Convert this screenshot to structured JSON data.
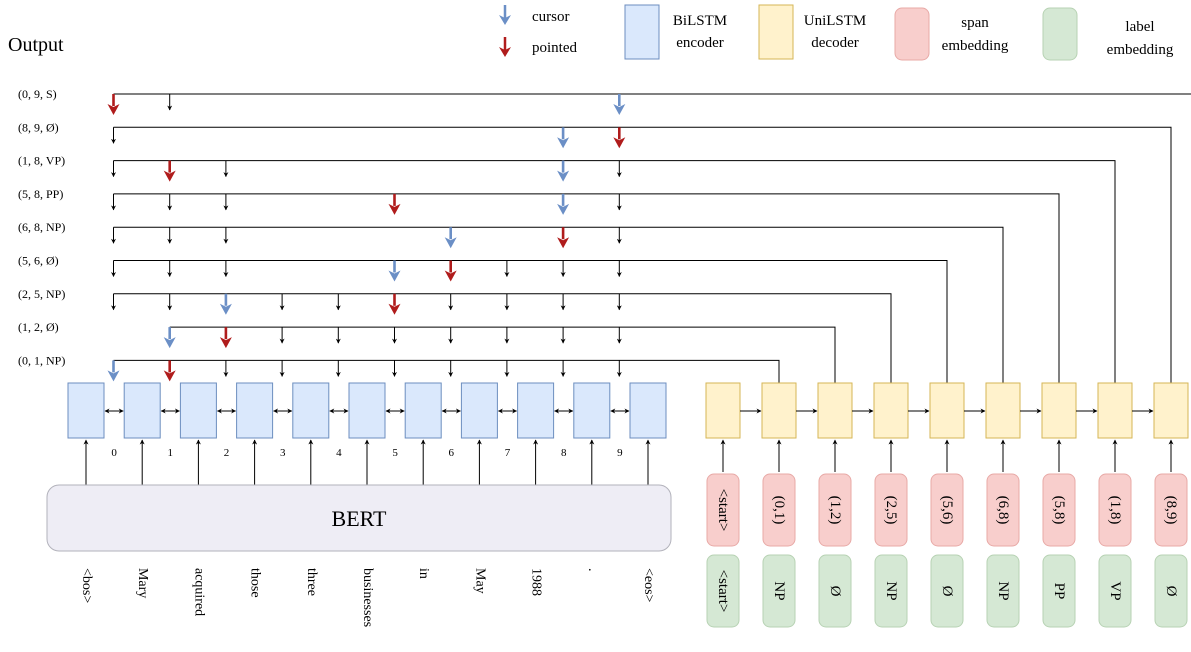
{
  "title": "Output",
  "legend": {
    "cursor": "cursor",
    "pointed": "pointed",
    "bilstm": [
      "BiLSTM",
      "encoder"
    ],
    "unilstm": [
      "UniLSTM",
      "decoder"
    ],
    "span": [
      "span",
      "embedding"
    ],
    "label": [
      "label",
      "embedding"
    ]
  },
  "colors": {
    "cursor_arrow": "#6b8fc6",
    "pointed_arrow": "#b01c1c",
    "bilstm_fill": "#dae8fc",
    "bilstm_stroke": "#6c8ebf",
    "unilstm_fill": "#fff2cc",
    "unilstm_stroke": "#d6b656",
    "span_fill": "#f8cecc",
    "span_stroke": "#e8a9a6",
    "label_fill": "#d5e8d4",
    "label_stroke": "#b7d2b3",
    "bert_fill": "#eeedf5",
    "bert_stroke": "#b2b2bb"
  },
  "bert_label": "BERT",
  "words": [
    "<bos>",
    "Mary",
    "acquired",
    "those",
    "three",
    "businesses",
    "in",
    "May",
    "1988",
    ".",
    "<eos>"
  ],
  "indices": [
    "0",
    "1",
    "2",
    "3",
    "4",
    "5",
    "6",
    "7",
    "8",
    "9"
  ],
  "span_embeddings": [
    "<start>",
    "(0,1)",
    "(1,2)",
    "(2,5)",
    "(5,6)",
    "(6,8)",
    "(5,8)",
    "(1,8)",
    "(8,9)"
  ],
  "label_embeddings": [
    "<start>",
    "NP",
    "Ø",
    "NP",
    "Ø",
    "NP",
    "PP",
    "VP",
    "Ø"
  ],
  "output_rows": [
    {
      "label": "(0, 9, S)",
      "cursor": 9,
      "pointed": 0,
      "positions": [
        0,
        1,
        9
      ]
    },
    {
      "label": "(8, 9, Ø)",
      "cursor": 8,
      "pointed": 9,
      "positions": [
        0,
        8,
        9
      ]
    },
    {
      "label": "(1, 8, VP)",
      "cursor": 8,
      "pointed": 1,
      "positions": [
        0,
        1,
        2,
        8,
        9
      ]
    },
    {
      "label": "(5, 8, PP)",
      "cursor": 8,
      "pointed": 5,
      "positions": [
        0,
        1,
        2,
        5,
        8,
        9
      ]
    },
    {
      "label": "(6, 8, NP)",
      "cursor": 6,
      "pointed": 8,
      "positions": [
        0,
        1,
        2,
        6,
        8,
        9
      ]
    },
    {
      "label": "(5, 6, Ø)",
      "cursor": 5,
      "pointed": 6,
      "positions": [
        0,
        1,
        2,
        5,
        6,
        7,
        8,
        9
      ]
    },
    {
      "label": "(2, 5, NP)",
      "cursor": 2,
      "pointed": 5,
      "positions": [
        0,
        1,
        2,
        3,
        4,
        5,
        6,
        7,
        8,
        9
      ]
    },
    {
      "label": "(1, 2, Ø)",
      "cursor": 1,
      "pointed": 2,
      "positions": [
        1,
        2,
        3,
        4,
        5,
        6,
        7,
        8,
        9
      ]
    },
    {
      "label": "(0, 1, NP)",
      "cursor": 0,
      "pointed": 1,
      "positions": [
        0,
        1,
        2,
        3,
        4,
        5,
        6,
        7,
        8,
        9
      ]
    }
  ]
}
